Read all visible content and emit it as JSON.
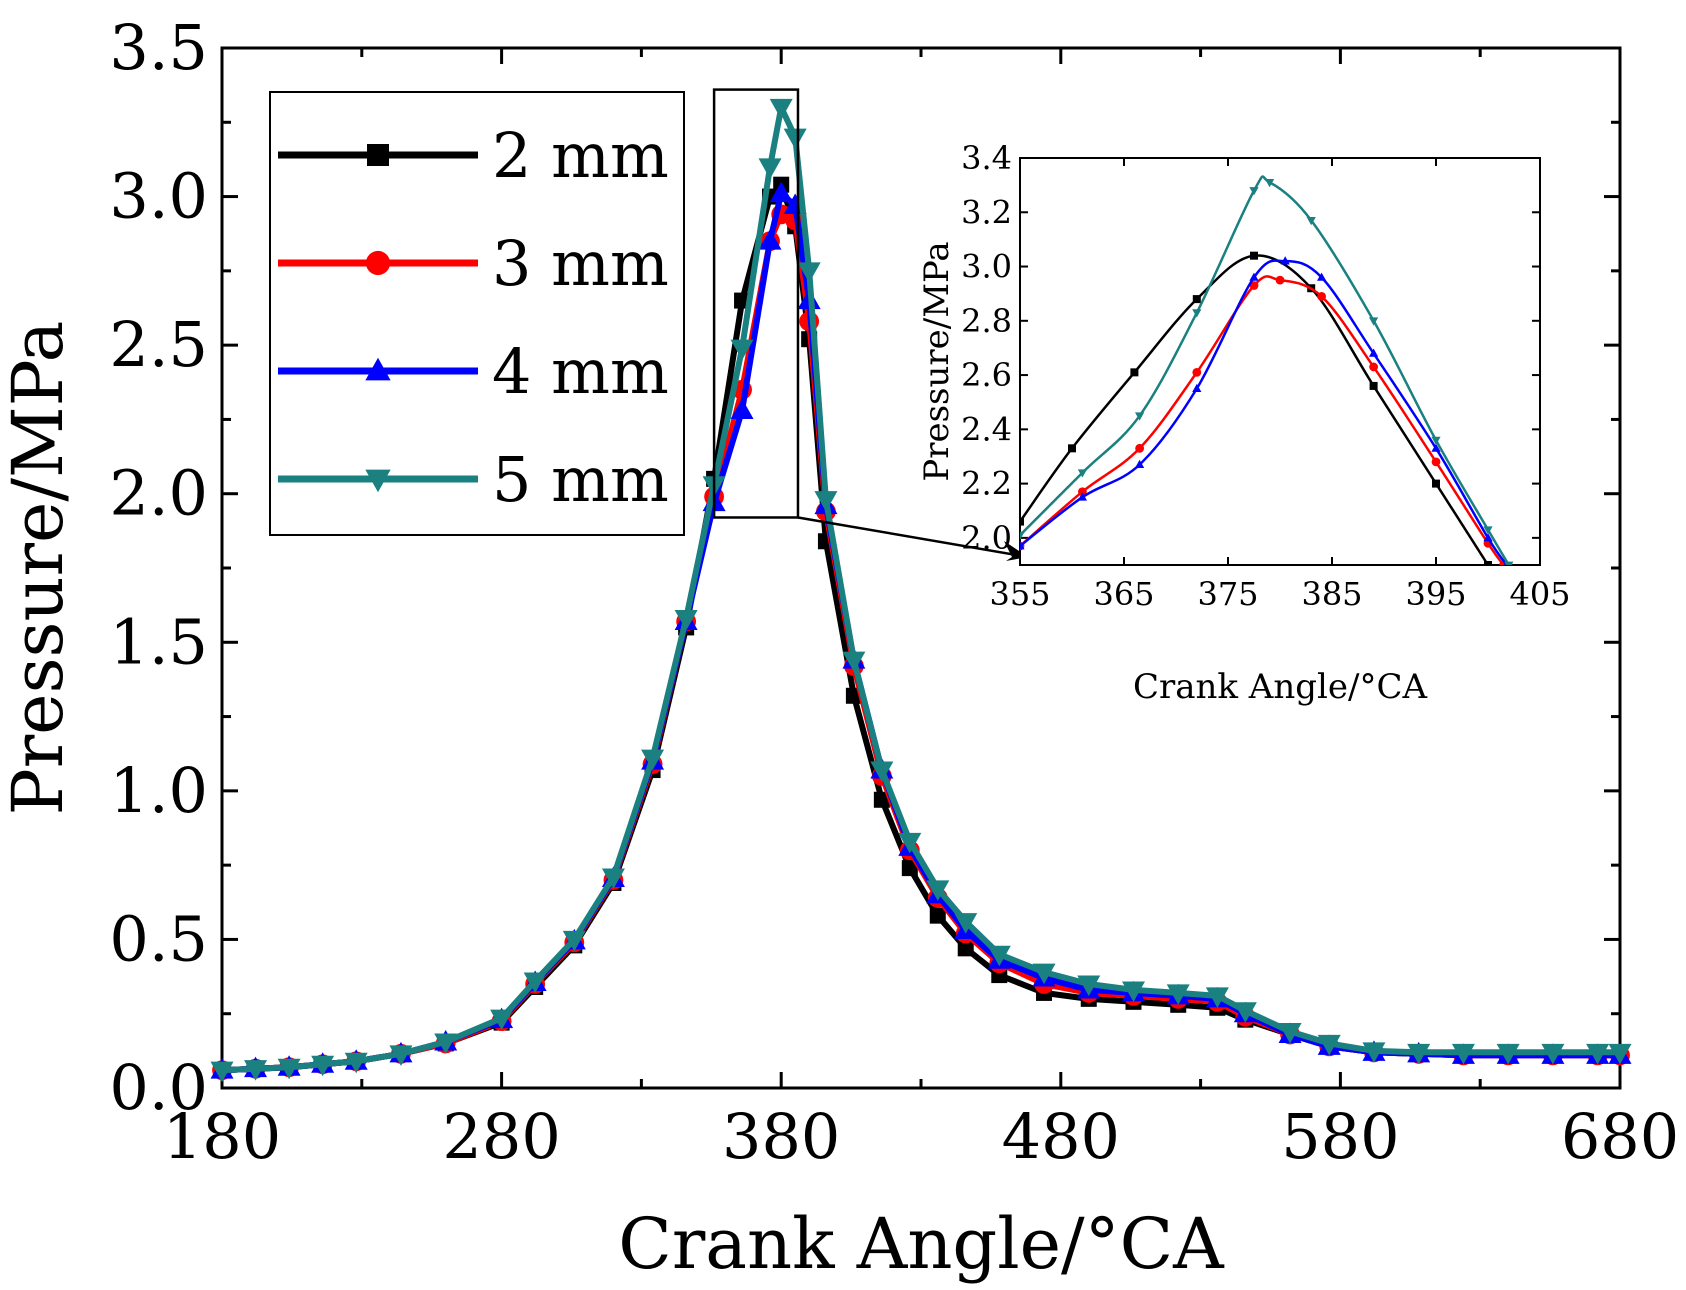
{
  "chart_data": [
    {
      "type": "line",
      "xlabel": "Crank Angle/°CA",
      "ylabel": "Pressure/MPa",
      "xlim": [
        180,
        680
      ],
      "ylim": [
        0.0,
        3.5
      ],
      "x_ticks": [
        "180",
        "280",
        "380",
        "480",
        "580",
        "680"
      ],
      "y_ticks": [
        "0.0",
        "0.5",
        "1.0",
        "1.5",
        "2.0",
        "2.5",
        "3.0",
        "3.5"
      ],
      "grid": false,
      "legend_position": "top-left",
      "x": [
        180,
        192,
        204,
        216,
        228,
        244,
        260,
        280,
        292,
        306,
        320,
        334,
        346,
        356,
        366,
        376,
        380,
        385,
        390,
        396,
        406,
        416,
        426,
        436,
        446,
        458,
        474,
        490,
        506,
        522,
        536,
        546,
        562,
        576,
        592,
        608,
        624,
        640,
        656,
        672,
        680
      ],
      "series": [
        {
          "name": "2 mm",
          "color": "#000000",
          "marker": "square",
          "values": [
            0.06,
            0.065,
            0.07,
            0.08,
            0.09,
            0.115,
            0.15,
            0.22,
            0.34,
            0.48,
            0.69,
            1.07,
            1.55,
            2.05,
            2.65,
            3.0,
            3.04,
            2.9,
            2.52,
            1.84,
            1.32,
            0.97,
            0.74,
            0.58,
            0.47,
            0.38,
            0.32,
            0.3,
            0.29,
            0.28,
            0.27,
            0.23,
            0.18,
            0.14,
            0.12,
            0.115,
            0.11,
            0.11,
            0.11,
            0.11,
            0.11
          ]
        },
        {
          "name": "3 mm",
          "color": "#ff0000",
          "marker": "circle",
          "values": [
            0.06,
            0.065,
            0.07,
            0.08,
            0.09,
            0.115,
            0.15,
            0.225,
            0.35,
            0.49,
            0.7,
            1.09,
            1.57,
            1.99,
            2.35,
            2.85,
            2.94,
            2.92,
            2.58,
            1.94,
            1.42,
            1.05,
            0.8,
            0.64,
            0.52,
            0.42,
            0.35,
            0.32,
            0.31,
            0.3,
            0.29,
            0.24,
            0.18,
            0.14,
            0.12,
            0.115,
            0.11,
            0.11,
            0.11,
            0.11,
            0.11
          ]
        },
        {
          "name": "4 mm",
          "color": "#0000ff",
          "marker": "triangle-up",
          "values": [
            0.06,
            0.065,
            0.07,
            0.08,
            0.09,
            0.115,
            0.155,
            0.23,
            0.355,
            0.495,
            0.705,
            1.1,
            1.57,
            1.97,
            2.28,
            2.85,
            3.01,
            2.97,
            2.65,
            1.96,
            1.44,
            1.07,
            0.81,
            0.65,
            0.53,
            0.43,
            0.37,
            0.33,
            0.32,
            0.31,
            0.3,
            0.25,
            0.18,
            0.14,
            0.12,
            0.115,
            0.11,
            0.11,
            0.11,
            0.11,
            0.11
          ]
        },
        {
          "name": "5 mm",
          "color": "#1a8080",
          "marker": "triangle-down",
          "values": [
            0.06,
            0.065,
            0.07,
            0.08,
            0.09,
            0.115,
            0.155,
            0.235,
            0.36,
            0.5,
            0.71,
            1.11,
            1.58,
            2.03,
            2.49,
            3.1,
            3.3,
            3.2,
            2.75,
            1.98,
            1.44,
            1.07,
            0.83,
            0.67,
            0.56,
            0.45,
            0.39,
            0.35,
            0.33,
            0.32,
            0.31,
            0.26,
            0.19,
            0.15,
            0.125,
            0.12,
            0.12,
            0.12,
            0.12,
            0.12,
            0.12
          ]
        }
      ]
    },
    {
      "type": "line",
      "xlabel": "Crank Angle/°CA",
      "ylabel": "Pressure/MPa",
      "xlim": [
        355,
        405
      ],
      "ylim": [
        1.9,
        3.4
      ],
      "x_ticks": [
        "355",
        "365",
        "375",
        "385",
        "395",
        "405"
      ],
      "y_ticks": [
        "2.0",
        "2.2",
        "2.4",
        "2.6",
        "2.8",
        "3.0",
        "3.2",
        "3.4"
      ],
      "series": [
        {
          "name": "2 mm",
          "color": "#000000",
          "points": [
            [
              355,
              2.06
            ],
            [
              360,
              2.33
            ],
            [
              366,
              2.61
            ],
            [
              372,
              2.88
            ],
            [
              377.5,
              3.04
            ],
            [
              383,
              2.92
            ],
            [
              389,
              2.56
            ],
            [
              395,
              2.2
            ],
            [
              400,
              1.9
            ]
          ]
        },
        {
          "name": "3 mm",
          "color": "#ff0000",
          "points": [
            [
              355,
              1.97
            ],
            [
              361,
              2.17
            ],
            [
              366.5,
              2.33
            ],
            [
              372,
              2.61
            ],
            [
              377.5,
              2.93
            ],
            [
              380,
              2.95
            ],
            [
              384,
              2.89
            ],
            [
              389,
              2.63
            ],
            [
              395,
              2.28
            ],
            [
              400,
              1.98
            ],
            [
              401.5,
              1.9
            ]
          ]
        },
        {
          "name": "4 mm",
          "color": "#0000ff",
          "points": [
            [
              355,
              1.97
            ],
            [
              361,
              2.15
            ],
            [
              366.5,
              2.27
            ],
            [
              372,
              2.55
            ],
            [
              377.5,
              2.96
            ],
            [
              380.5,
              3.02
            ],
            [
              384,
              2.96
            ],
            [
              389,
              2.68
            ],
            [
              395,
              2.33
            ],
            [
              400,
              2.0
            ],
            [
              401.8,
              1.9
            ]
          ]
        },
        {
          "name": "5 mm",
          "color": "#1a8080",
          "points": [
            [
              355,
              2.01
            ],
            [
              361,
              2.24
            ],
            [
              366.5,
              2.45
            ],
            [
              372,
              2.83
            ],
            [
              377.5,
              3.28
            ],
            [
              379,
              3.31
            ],
            [
              383,
              3.17
            ],
            [
              389,
              2.8
            ],
            [
              395,
              2.36
            ],
            [
              400,
              2.03
            ],
            [
              402,
              1.9
            ]
          ]
        }
      ]
    }
  ]
}
